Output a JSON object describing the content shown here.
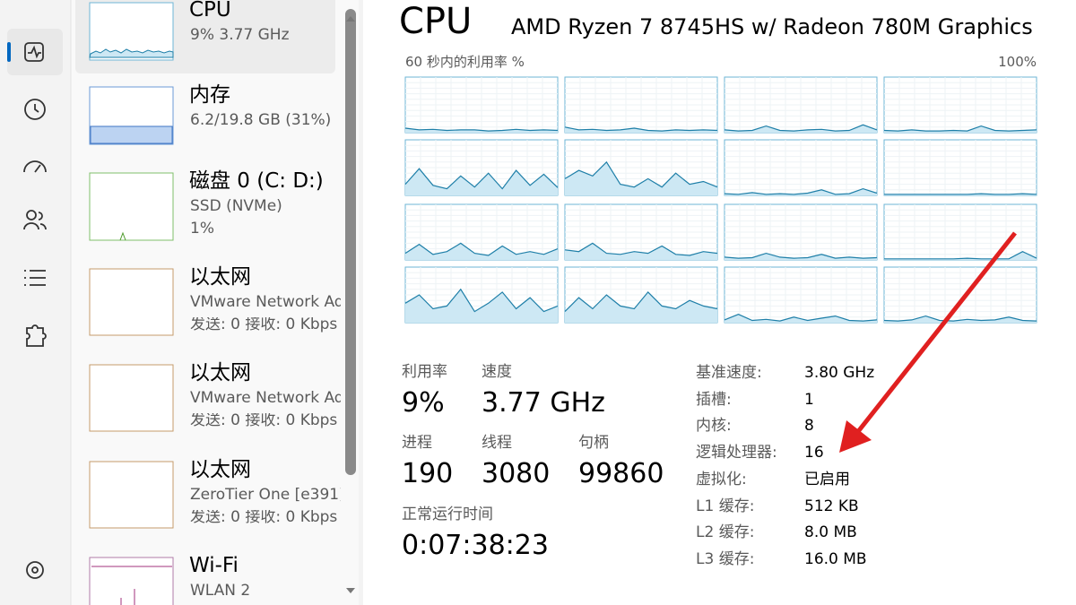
{
  "sidebar": {
    "items": [
      {
        "title": "CPU",
        "lines": [
          "9%  3.77 GHz"
        ]
      },
      {
        "title": "内存",
        "lines": [
          "6.2/19.8 GB (31%)"
        ]
      },
      {
        "title": "磁盘 0 (C: D:)",
        "lines": [
          "SSD (NVMe)",
          "1%"
        ]
      },
      {
        "title": "以太网",
        "lines": [
          "VMware Network Adapter",
          "发送: 0 接收: 0 Kbps"
        ]
      },
      {
        "title": "以太网",
        "lines": [
          "VMware Network Adapter",
          "发送: 0 接收: 0 Kbps"
        ]
      },
      {
        "title": "以太网",
        "lines": [
          "ZeroTier One [e391]",
          "发送: 0 接收: 0 Kbps"
        ]
      },
      {
        "title": "Wi-Fi",
        "lines": [
          "WLAN 2"
        ]
      }
    ]
  },
  "header": {
    "title": "CPU",
    "subtitle": "AMD Ryzen 7 8745HS w/ Radeon 780M Graphics"
  },
  "graph": {
    "label": "60 秒内的利用率 %",
    "max": {
      "value": 100,
      "label": "100%"
    },
    "cores": [
      [
        8,
        5,
        6,
        4,
        5,
        5,
        3,
        4,
        6,
        4,
        5,
        4
      ],
      [
        10,
        5,
        6,
        4,
        5,
        8,
        4,
        3,
        5,
        4,
        5,
        4
      ],
      [
        5,
        3,
        4,
        12,
        4,
        3,
        5,
        6,
        3,
        4,
        14,
        5
      ],
      [
        4,
        3,
        5,
        3,
        3,
        4,
        3,
        12,
        4,
        3,
        4,
        5
      ],
      [
        20,
        48,
        18,
        12,
        35,
        15,
        40,
        12,
        45,
        18,
        38,
        14
      ],
      [
        30,
        45,
        35,
        60,
        20,
        15,
        30,
        15,
        40,
        20,
        25,
        15
      ],
      [
        3,
        2,
        5,
        2,
        3,
        2,
        4,
        10,
        2,
        3,
        12,
        4
      ],
      [
        2,
        2,
        2,
        2,
        2,
        2,
        2,
        3,
        2,
        2,
        3,
        2
      ],
      [
        12,
        28,
        10,
        15,
        30,
        12,
        8,
        25,
        10,
        15,
        10,
        20
      ],
      [
        18,
        15,
        30,
        12,
        10,
        15,
        12,
        25,
        10,
        8,
        15,
        12
      ],
      [
        5,
        3,
        4,
        12,
        5,
        3,
        4,
        10,
        3,
        5,
        3,
        4
      ],
      [
        2,
        2,
        2,
        2,
        2,
        2,
        3,
        2,
        2,
        2,
        15,
        3
      ],
      [
        35,
        50,
        25,
        30,
        60,
        20,
        35,
        55,
        25,
        45,
        20,
        30
      ],
      [
        20,
        45,
        25,
        50,
        30,
        25,
        55,
        30,
        25,
        40,
        30,
        25
      ],
      [
        5,
        15,
        4,
        6,
        3,
        10,
        4,
        8,
        12,
        4,
        3,
        5
      ],
      [
        4,
        3,
        5,
        12,
        4,
        3,
        6,
        4,
        5,
        10,
        4,
        3
      ]
    ]
  },
  "stats": [
    {
      "label": "利用率",
      "value": "9%"
    },
    {
      "label": "速度",
      "value": "3.77 GHz"
    },
    {
      "label": "进程",
      "value": "190"
    },
    {
      "label": "线程",
      "value": "3080"
    },
    {
      "label": "句柄",
      "value": "99860"
    },
    {
      "label": "正常运行时间",
      "value": "0:07:38:23"
    }
  ],
  "details": [
    {
      "label": "基准速度:",
      "value": "3.80 GHz"
    },
    {
      "label": "插槽:",
      "value": "1"
    },
    {
      "label": "内核:",
      "value": "8"
    },
    {
      "label": "逻辑处理器:",
      "value": "16"
    },
    {
      "label": "虚拟化:",
      "value": "已启用"
    },
    {
      "label": "L1 缓存:",
      "value": "512 KB"
    },
    {
      "label": "L2 缓存:",
      "value": "8.0 MB"
    },
    {
      "label": "L3 缓存:",
      "value": "16.0 MB"
    }
  ]
}
